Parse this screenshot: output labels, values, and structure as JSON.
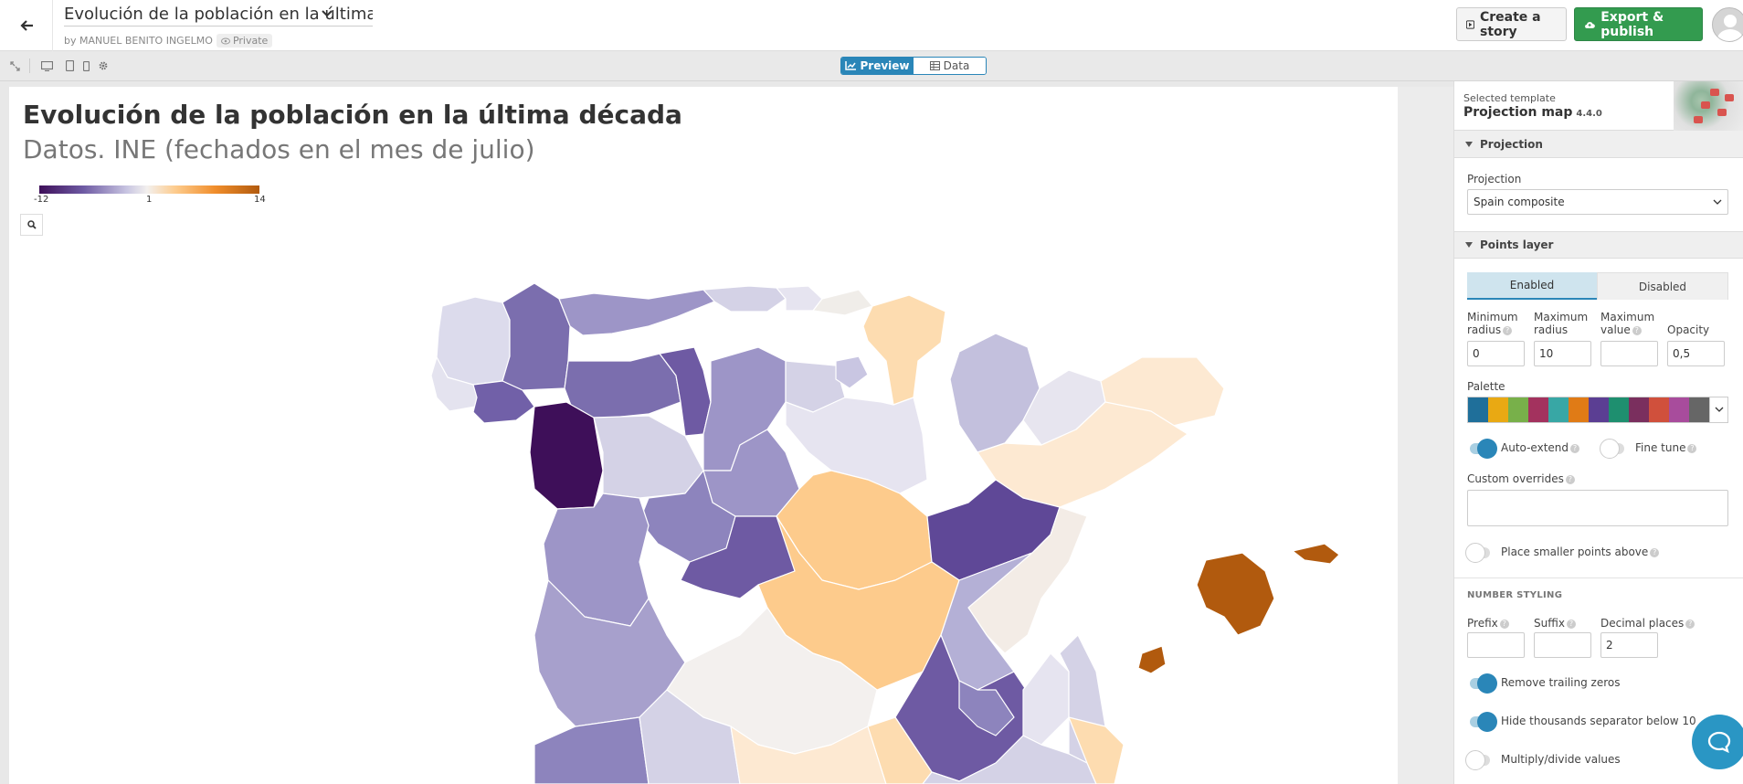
{
  "header": {
    "doc_title": "Evolución de la población en la última décad",
    "byline": "by MANUEL BENITO INGELMO",
    "privacy": "Private",
    "create_story": "Create a story",
    "export_publish": "Export & publish"
  },
  "toolbar": {
    "preview": "Preview",
    "data": "Data"
  },
  "chart": {
    "title": "Evolución de la población en la última década",
    "subtitle": "Datos. INE (fechados en el mes de julio)",
    "legend": {
      "min": "-12",
      "mid": "1",
      "max": "14",
      "colors": [
        "#3e0f59",
        "#6e5aa3",
        "#c9c6e2",
        "#f3f0ee",
        "#fdcb8c",
        "#f08d2b",
        "#b15a0e"
      ]
    }
  },
  "sidebar": {
    "template_label": "Selected template",
    "template_name": "Projection map",
    "template_version": "4.4.0",
    "projection_section": "Projection",
    "projection_label": "Projection",
    "projection_value": "Spain composite",
    "points_section": "Points layer",
    "enabled": "Enabled",
    "disabled": "Disabled",
    "min_radius_label": "Minimum radius",
    "max_radius_label": "Maximum radius",
    "max_value_label": "Maximum value",
    "opacity_label": "Opacity",
    "min_radius": "0",
    "max_radius": "10",
    "max_value": "",
    "opacity": "0,5",
    "palette_label": "Palette",
    "palette": [
      "#1f6f9a",
      "#e9a913",
      "#78b04a",
      "#a3325e",
      "#38a7a5",
      "#e07b16",
      "#5b3e93",
      "#1e8f6f",
      "#7a2f5e",
      "#d0503c",
      "#a84c9c",
      "#666666"
    ],
    "auto_extend": "Auto-extend",
    "fine_tune": "Fine tune",
    "custom_overrides": "Custom overrides",
    "smaller_points": "Place smaller points above",
    "number_styling": "NUMBER STYLING",
    "prefix_label": "Prefix",
    "suffix_label": "Suffix",
    "decimal_label": "Decimal places",
    "prefix": "",
    "suffix": "",
    "decimal_places": "2",
    "remove_zeros": "Remove trailing zeros",
    "hide_thousands": "Hide thousands separator below 10",
    "multiply_divide": "Multiply/divide values"
  },
  "choropleth": {
    "regions": [
      {
        "name": "A Coruña",
        "color": "#dcdbec"
      },
      {
        "name": "Lugo",
        "color": "#7b6eae"
      },
      {
        "name": "Asturias",
        "color": "#9d95c7"
      },
      {
        "name": "Cantabria",
        "color": "#d4d2e6"
      },
      {
        "name": "Bizkaia",
        "color": "#e6e4f0"
      },
      {
        "name": "Gipuzkoa",
        "color": "#f0ede9"
      },
      {
        "name": "Navarra",
        "color": "#fddcb0"
      },
      {
        "name": "Huesca",
        "color": "#c3c0dd"
      },
      {
        "name": "Lleida",
        "color": "#e7e5ef"
      },
      {
        "name": "Girona",
        "color": "#fde9d2"
      },
      {
        "name": "Pontevedra",
        "color": "#e4e3ef"
      },
      {
        "name": "Ourense",
        "color": "#7160a8"
      },
      {
        "name": "León",
        "color": "#7b6eae"
      },
      {
        "name": "Palencia",
        "color": "#6e5aa3"
      },
      {
        "name": "Burgos",
        "color": "#9d95c7"
      },
      {
        "name": "La Rioja",
        "color": "#d4d2e6"
      },
      {
        "name": "Álava",
        "color": "#c9c6e2"
      },
      {
        "name": "Zaragoza",
        "color": "#e6e4f0"
      },
      {
        "name": "Barcelona",
        "color": "#fde9d2"
      },
      {
        "name": "Zamora",
        "color": "#3e0f59"
      },
      {
        "name": "Valladolid",
        "color": "#d4d2e6"
      },
      {
        "name": "Soria",
        "color": "#9d95c7"
      },
      {
        "name": "Segovia",
        "color": "#8d84bd"
      },
      {
        "name": "Guadalajara",
        "color": "#fdcb8c"
      },
      {
        "name": "Teruel",
        "color": "#5f4897"
      },
      {
        "name": "Tarragona",
        "color": "#f3ece6"
      },
      {
        "name": "Salamanca",
        "color": "#9d95c7"
      },
      {
        "name": "Ávila",
        "color": "#6e5aa3"
      },
      {
        "name": "Madrid",
        "color": "#fdcb8c"
      },
      {
        "name": "Castellón",
        "color": "#b4b0d6"
      },
      {
        "name": "Cáceres",
        "color": "#a7a0cc"
      },
      {
        "name": "Toledo",
        "color": "#f3f0ee"
      },
      {
        "name": "Cuenca",
        "color": "#6e5aa3"
      },
      {
        "name": "Valencia",
        "color": "#e6e4f0"
      },
      {
        "name": "Badajoz",
        "color": "#d4d2e6"
      },
      {
        "name": "Ciudad Real",
        "color": "#8d84bd"
      },
      {
        "name": "Albacete",
        "color": "#d4d2e6"
      },
      {
        "name": "Alicante",
        "color": "#fde9d2"
      },
      {
        "name": "Huelva",
        "color": "#fddcb0"
      },
      {
        "name": "Córdoba",
        "color": "#d4d2e6"
      },
      {
        "name": "Jaén",
        "color": "#8d84bd"
      },
      {
        "name": "Murcia",
        "color": "#fddcb0"
      },
      {
        "name": "Mallorca",
        "color": "#b15a0e"
      },
      {
        "name": "Menorca",
        "color": "#b15a0e"
      },
      {
        "name": "Ibiza",
        "color": "#b15a0e"
      }
    ]
  }
}
